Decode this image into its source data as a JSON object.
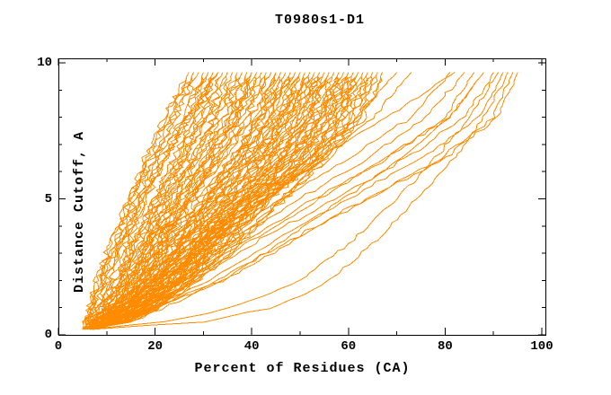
{
  "chart_data": {
    "type": "line",
    "title": "T0980s1-D1",
    "xlabel": "Percent of Residues (CA)",
    "ylabel": "Distance Cutoff, A",
    "xlim": [
      0,
      100.8
    ],
    "ylim": [
      0,
      10.17
    ],
    "x_ticks": {
      "major": [
        0,
        20,
        40,
        60,
        80,
        100
      ],
      "minor": [
        10,
        30,
        50,
        70,
        90
      ]
    },
    "y_ticks": {
      "major": [
        0,
        5,
        10
      ],
      "minor": [
        1,
        2,
        3,
        4,
        6,
        7,
        8,
        9
      ]
    },
    "grid": false,
    "legend": "none",
    "series_color": "#ff8c00",
    "axis_color": "#000000",
    "background": "#ffffff",
    "series_description": "Per-model cumulative accuracy curves: percent of CA residues (x) under distance cutoff in Angstroms (y); each curve sampled at fixed cutoff knots",
    "curve_y_knots": [
      0.2,
      0.5,
      1,
      2,
      3.5,
      5,
      6.5,
      8,
      9.65
    ],
    "curves": [
      [
        5.5,
        6,
        7,
        9,
        12,
        15,
        18,
        22,
        27
      ],
      [
        5,
        6.5,
        8,
        10,
        13,
        16,
        20,
        24,
        29
      ],
      [
        6,
        7,
        8.5,
        11,
        14,
        17,
        21,
        26,
        30
      ],
      [
        5.5,
        7.5,
        9,
        12,
        15,
        18,
        22,
        27,
        31
      ],
      [
        6,
        8,
        10,
        13,
        16,
        20,
        24,
        28,
        32
      ],
      [
        5,
        7,
        9.5,
        12,
        16,
        20,
        25,
        29,
        33
      ],
      [
        6.5,
        9,
        11,
        14,
        18,
        22,
        26,
        30,
        34
      ],
      [
        5.5,
        8,
        10,
        13,
        17,
        21,
        26,
        31,
        35
      ],
      [
        6,
        9,
        12,
        15,
        19,
        23,
        28,
        32,
        36
      ],
      [
        5,
        7,
        10,
        14,
        18,
        23,
        28,
        33,
        37
      ],
      [
        6.5,
        10,
        13,
        16,
        20,
        25,
        30,
        34,
        38
      ],
      [
        5.5,
        8,
        11,
        15,
        19,
        24,
        29,
        35,
        39
      ],
      [
        6,
        9,
        12,
        16,
        21,
        26,
        31,
        36,
        40
      ],
      [
        7,
        11,
        14,
        18,
        22,
        27,
        32,
        37,
        40
      ],
      [
        5,
        8,
        11,
        15,
        20,
        25,
        31,
        37,
        41
      ],
      [
        6,
        10,
        13,
        17,
        22,
        27,
        33,
        38,
        42
      ],
      [
        6.5,
        9,
        12,
        16,
        21,
        27,
        33,
        39,
        43
      ],
      [
        5.5,
        8,
        12,
        17,
        22,
        28,
        34,
        40,
        44
      ],
      [
        6,
        10,
        14,
        18,
        24,
        30,
        36,
        41,
        45
      ],
      [
        7,
        12,
        15,
        20,
        25,
        31,
        37,
        42,
        45
      ],
      [
        5,
        9,
        13,
        18,
        23,
        29,
        36,
        42,
        46
      ],
      [
        6,
        10,
        14,
        19,
        25,
        31,
        38,
        43,
        47
      ],
      [
        6.5,
        11,
        15,
        20,
        26,
        32,
        39,
        44,
        48
      ],
      [
        5.5,
        8,
        12,
        18,
        24,
        31,
        38,
        44,
        48
      ],
      [
        6,
        10,
        14,
        20,
        26,
        33,
        40,
        45,
        49
      ],
      [
        7,
        12,
        16,
        21,
        27,
        34,
        41,
        46,
        50
      ],
      [
        5,
        9,
        13,
        19,
        26,
        33,
        40,
        46,
        50
      ],
      [
        6,
        11,
        15,
        21,
        28,
        35,
        42,
        47,
        51
      ],
      [
        6.5,
        12,
        16,
        22,
        29,
        36,
        43,
        48,
        52
      ],
      [
        5.5,
        9,
        14,
        20,
        27,
        35,
        42,
        48,
        52
      ],
      [
        6,
        11,
        16,
        22,
        29,
        36,
        44,
        49,
        53
      ],
      [
        7,
        13,
        17,
        23,
        30,
        37,
        45,
        50,
        54
      ],
      [
        5,
        10,
        15,
        21,
        28,
        36,
        44,
        50,
        54
      ],
      [
        6,
        12,
        17,
        23,
        30,
        38,
        46,
        51,
        55
      ],
      [
        6.5,
        13,
        18,
        24,
        31,
        39,
        47,
        52,
        56
      ],
      [
        5.5,
        10,
        15,
        22,
        30,
        38,
        46,
        52,
        56
      ],
      [
        6,
        12,
        17,
        24,
        31,
        39,
        47,
        53,
        57
      ],
      [
        7,
        14,
        19,
        25,
        32,
        40,
        48,
        54,
        58
      ],
      [
        5,
        11,
        16,
        23,
        31,
        39,
        48,
        54,
        58
      ],
      [
        6,
        13,
        18,
        25,
        32,
        40,
        49,
        55,
        59
      ],
      [
        6.5,
        14,
        19,
        26,
        33,
        41,
        50,
        56,
        60
      ],
      [
        5.5,
        11,
        17,
        24,
        32,
        41,
        50,
        56,
        60
      ],
      [
        6,
        13,
        18,
        26,
        33,
        42,
        51,
        57,
        61
      ],
      [
        7,
        15,
        20,
        27,
        34,
        43,
        52,
        58,
        62
      ],
      [
        5,
        12,
        17,
        25,
        33,
        42,
        52,
        58,
        62
      ],
      [
        6,
        14,
        19,
        27,
        35,
        43,
        53,
        59,
        63
      ],
      [
        6.5,
        15,
        20,
        28,
        36,
        44,
        54,
        60,
        64
      ],
      [
        5.5,
        12,
        18,
        26,
        35,
        44,
        54,
        61,
        65
      ],
      [
        6,
        14,
        20,
        28,
        37,
        46,
        55,
        62,
        66
      ],
      [
        7,
        15,
        21,
        29,
        38,
        47,
        56,
        63,
        67
      ],
      [
        5.5,
        6,
        6.5,
        8,
        11,
        15,
        19,
        23,
        28
      ],
      [
        5,
        5.5,
        6.5,
        9,
        13,
        17,
        22,
        27,
        33
      ],
      [
        6,
        9,
        13,
        20,
        30,
        41,
        52,
        62,
        70
      ],
      [
        6.5,
        10,
        15,
        22,
        32,
        43,
        55,
        65,
        73
      ],
      [
        5.5,
        9,
        14,
        22,
        33,
        46,
        60,
        73,
        81
      ],
      [
        6,
        11,
        16,
        25,
        37,
        50,
        64,
        76,
        84
      ],
      [
        7,
        12,
        18,
        28,
        40,
        54,
        68,
        80,
        86
      ],
      [
        6,
        10,
        16,
        26,
        39,
        53,
        68,
        81,
        88
      ],
      [
        6.5,
        11,
        17,
        28,
        42,
        57,
        72,
        84,
        90
      ],
      [
        6,
        12,
        19,
        31,
        45,
        60,
        75,
        87,
        92
      ],
      [
        7,
        13,
        21,
        34,
        49,
        64,
        79,
        90,
        94
      ],
      [
        6,
        12,
        20,
        33,
        48,
        64,
        80,
        91,
        95
      ],
      [
        7,
        30,
        45,
        56,
        66,
        74,
        82,
        88,
        93
      ],
      [
        6.5,
        22,
        36,
        50,
        61,
        70,
        78,
        85,
        91
      ],
      [
        6,
        14,
        22,
        34,
        47,
        59,
        71,
        81,
        88
      ],
      [
        6,
        9,
        13,
        19,
        28,
        40,
        54,
        68,
        82
      ]
    ]
  }
}
